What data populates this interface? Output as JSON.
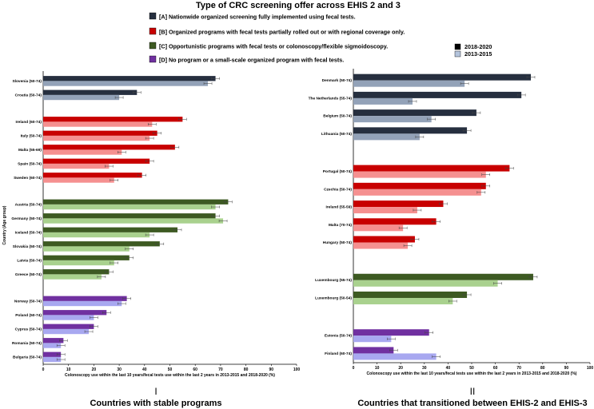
{
  "title": "Type of CRC screening offer across EHIS 2 and 3",
  "groups": [
    {
      "key": "A",
      "label": "[A] Nationwide organized screening fully implemented using fecal tests.",
      "dark": "#262f3f",
      "light": "#93a2b8"
    },
    {
      "key": "B",
      "label": "[B] Organized programs with fecal tests partially rolled out or with regional coverage only.",
      "dark": "#c80000",
      "light": "#f59090"
    },
    {
      "key": "C",
      "label": "[C] Opportunistic programs with fecal tests or colonoscopy/flexible sigmoidoscopy.",
      "dark": "#3d5a22",
      "light": "#a9d18e"
    },
    {
      "key": "D",
      "label": "[D] No program or a small-scale organized program with fecal tests.",
      "dark": "#7030a0",
      "light": "#a8a8f0"
    }
  ],
  "period_legend": [
    {
      "label": "2018-2020",
      "color": "#000000"
    },
    {
      "label": "2013-2015",
      "color": "#b4c4dc"
    }
  ],
  "chart_data": [
    {
      "type": "bar",
      "orientation": "horizontal",
      "panel": "I",
      "caption": "Countries with stable programs",
      "xlabel": "Colonoscopy use within the last 10 years/fecal tests use within the last 2 years in 2013-2015 and 2018-2020 (%)",
      "ylabel": "Country (Age group)",
      "xlim": [
        0,
        100
      ],
      "xticks": [
        0,
        10,
        20,
        30,
        40,
        50,
        60,
        70,
        80,
        90,
        100
      ],
      "series": [
        "2018-2020",
        "2013-2015"
      ],
      "categories": [
        {
          "name": "Slovenia (50-74)",
          "group": "A",
          "v2018": 68,
          "v2013": 65
        },
        {
          "name": "Croatia (50-74)",
          "group": "A",
          "v2018": 37,
          "v2013": 30
        },
        {
          "name": "Ireland (60-74)",
          "group": "B",
          "v2018": 55,
          "v2013": 43
        },
        {
          "name": "Italy (50-74)",
          "group": "B",
          "v2018": 45,
          "v2013": 42
        },
        {
          "name": "Malta (55-69)",
          "group": "B",
          "v2018": 52,
          "v2013": 31
        },
        {
          "name": "Spain (50-74)",
          "group": "B",
          "v2018": 42,
          "v2013": 26
        },
        {
          "name": "Sweden (60-74)",
          "group": "B",
          "v2018": 39,
          "v2013": 28
        },
        {
          "name": "Austria (50-74)",
          "group": "C",
          "v2018": 73,
          "v2013": 68
        },
        {
          "name": "Germany (50-74)",
          "group": "C",
          "v2018": 68,
          "v2013": 71
        },
        {
          "name": "Iceland (50-74)",
          "group": "C",
          "v2018": 53,
          "v2013": 42
        },
        {
          "name": "Slovakia (50-74)",
          "group": "C",
          "v2018": 46,
          "v2013": 34
        },
        {
          "name": "Latvia (50-74)",
          "group": "C",
          "v2018": 34,
          "v2013": 28
        },
        {
          "name": "Greece (50-74)",
          "group": "C",
          "v2018": 26,
          "v2013": 23
        },
        {
          "name": "Norway (50-74)",
          "group": "D",
          "v2018": 33,
          "v2013": 31
        },
        {
          "name": "Poland (50-74)",
          "group": "D",
          "v2018": 25,
          "v2013": 20
        },
        {
          "name": "Cyprus (50-74)",
          "group": "D",
          "v2018": 20,
          "v2013": 18
        },
        {
          "name": "Romania (50-74)",
          "group": "D",
          "v2018": 8,
          "v2013": 7
        },
        {
          "name": "Bulgaria (50-74)",
          "group": "D",
          "v2018": 7,
          "v2013": 7
        }
      ]
    },
    {
      "type": "bar",
      "orientation": "horizontal",
      "panel": "II",
      "caption": "Countries that transitioned between EHIS-2 and EHIS-3",
      "xlabel": "Colonoscopy use within the last 10 years/fecal tests use within the last 2 years in 2013-2015 and 2018-2020 (%)",
      "xlim": [
        0,
        100
      ],
      "xticks": [
        0,
        10,
        20,
        30,
        40,
        50,
        60,
        70,
        80,
        90,
        100
      ],
      "series": [
        "2018-2020",
        "2013-2015"
      ],
      "categories": [
        {
          "name": "Denmark (50-74)",
          "group": "A",
          "v2018": 75,
          "v2013": 47
        },
        {
          "name": "The Netherlands (55-74)",
          "group": "A",
          "v2018": 71,
          "v2013": 25
        },
        {
          "name": "Belgium (50-74)",
          "group": "A",
          "v2018": 52,
          "v2013": 33
        },
        {
          "name": "Lithuania (50-74)",
          "group": "A",
          "v2018": 48,
          "v2013": 28
        },
        {
          "name": "Portugal (50-74)",
          "group": "B",
          "v2018": 66,
          "v2013": 56
        },
        {
          "name": "Czechia (50-74)",
          "group": "B",
          "v2018": 56,
          "v2013": 54
        },
        {
          "name": "Ireland (55-59)",
          "group": "B",
          "v2018": 38,
          "v2013": 27
        },
        {
          "name": "Malta (70-74)",
          "group": "B",
          "v2018": 35,
          "v2013": 21
        },
        {
          "name": "Hungary (50-74)",
          "group": "B",
          "v2018": 26,
          "v2013": 23
        },
        {
          "name": "Luxembourg (55-74)",
          "group": "C",
          "v2018": 76,
          "v2013": 61
        },
        {
          "name": "Luxembourg (50-54)",
          "group": "C",
          "v2018": 48,
          "v2013": 42
        },
        {
          "name": "Estonia (50-74)",
          "group": "D",
          "v2018": 32,
          "v2013": 16
        },
        {
          "name": "Finland (60-74)",
          "group": "D",
          "v2018": 17,
          "v2013": 35
        }
      ]
    }
  ]
}
